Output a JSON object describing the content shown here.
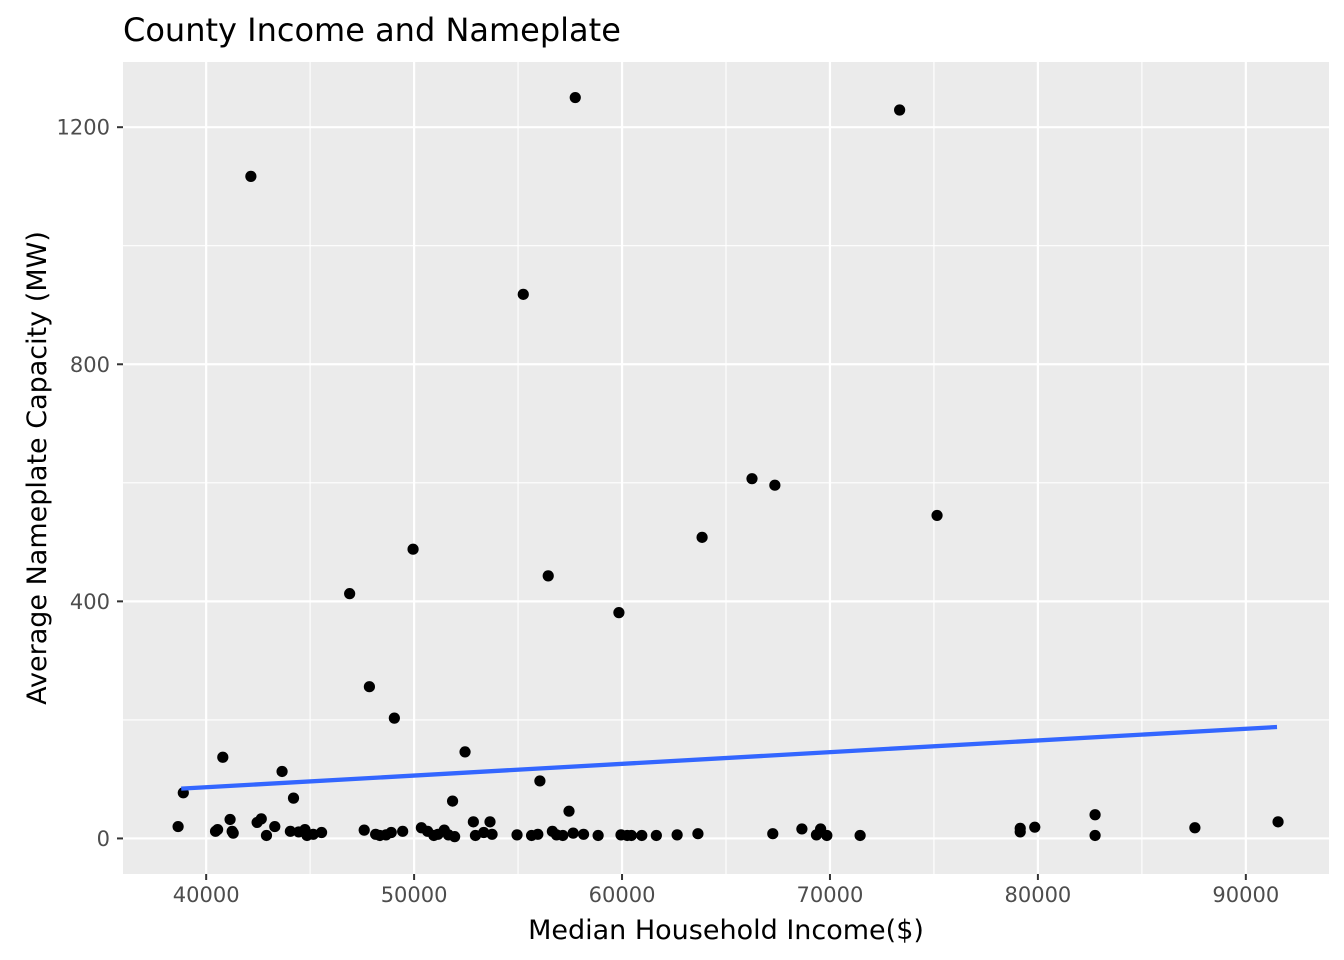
{
  "chart_data": {
    "type": "scatter",
    "title": "County Income and Nameplate",
    "xlabel": "Median Household Income($)",
    "ylabel": "Average Nameplate Capacity (MW)",
    "xlim": [
      36000,
      94000
    ],
    "ylim": [
      -60,
      1310
    ],
    "x_ticks": [
      40000,
      50000,
      60000,
      70000,
      80000,
      90000
    ],
    "x_tick_labels": [
      "40000",
      "50000",
      "60000",
      "70000",
      "80000",
      "90000"
    ],
    "y_ticks": [
      0,
      400,
      800,
      1200
    ],
    "y_tick_labels": [
      "0",
      "400",
      "800",
      "1200"
    ],
    "x_minor_ticks": [
      35000,
      45000,
      55000,
      65000,
      75000,
      85000
    ],
    "y_minor_ticks": [
      200,
      600,
      1000
    ],
    "grid": true,
    "background_color": "#ebebeb",
    "point_color": "#000000",
    "trend_color": "#3366ff",
    "trend_line": {
      "x": [
        38800,
        91500
      ],
      "y": [
        84,
        188
      ]
    },
    "points": [
      [
        38650,
        20
      ],
      [
        38900,
        77
      ],
      [
        40450,
        12
      ],
      [
        40550,
        15
      ],
      [
        40800,
        137
      ],
      [
        41150,
        32
      ],
      [
        41250,
        12
      ],
      [
        41300,
        9
      ],
      [
        42150,
        1117
      ],
      [
        42450,
        27
      ],
      [
        42650,
        33
      ],
      [
        42900,
        5
      ],
      [
        43300,
        20
      ],
      [
        43650,
        113
      ],
      [
        44050,
        12
      ],
      [
        44200,
        68
      ],
      [
        44450,
        11
      ],
      [
        44750,
        15
      ],
      [
        44850,
        5
      ],
      [
        45150,
        7
      ],
      [
        45550,
        10
      ],
      [
        46900,
        413
      ],
      [
        47600,
        14
      ],
      [
        47850,
        256
      ],
      [
        48150,
        7
      ],
      [
        48350,
        5
      ],
      [
        48650,
        6
      ],
      [
        48900,
        10
      ],
      [
        49050,
        203
      ],
      [
        49450,
        12
      ],
      [
        49950,
        488
      ],
      [
        50350,
        18
      ],
      [
        50650,
        12
      ],
      [
        50950,
        5
      ],
      [
        51150,
        7
      ],
      [
        51450,
        14
      ],
      [
        51650,
        6
      ],
      [
        51850,
        63
      ],
      [
        51950,
        3
      ],
      [
        52450,
        146
      ],
      [
        52850,
        28
      ],
      [
        52950,
        5
      ],
      [
        53350,
        10
      ],
      [
        53650,
        28
      ],
      [
        53750,
        7
      ],
      [
        54950,
        6
      ],
      [
        55250,
        918
      ],
      [
        55650,
        5
      ],
      [
        55950,
        7
      ],
      [
        56050,
        97
      ],
      [
        56450,
        443
      ],
      [
        56650,
        12
      ],
      [
        56850,
        6
      ],
      [
        57150,
        5
      ],
      [
        57450,
        46
      ],
      [
        57650,
        9
      ],
      [
        57750,
        1250
      ],
      [
        58150,
        7
      ],
      [
        58850,
        5
      ],
      [
        59850,
        381
      ],
      [
        59950,
        6
      ],
      [
        60250,
        5
      ],
      [
        60450,
        5
      ],
      [
        60950,
        5
      ],
      [
        61650,
        5
      ],
      [
        62650,
        6
      ],
      [
        63650,
        8
      ],
      [
        63850,
        508
      ],
      [
        66250,
        607
      ],
      [
        67250,
        8
      ],
      [
        67350,
        596
      ],
      [
        68650,
        16
      ],
      [
        69350,
        6
      ],
      [
        69550,
        16
      ],
      [
        69850,
        5
      ],
      [
        71450,
        5
      ],
      [
        73350,
        1229
      ],
      [
        75150,
        545
      ],
      [
        79150,
        11
      ],
      [
        79150,
        17
      ],
      [
        79850,
        19
      ],
      [
        82750,
        40
      ],
      [
        82750,
        5
      ],
      [
        87550,
        18
      ],
      [
        91550,
        28
      ]
    ]
  }
}
